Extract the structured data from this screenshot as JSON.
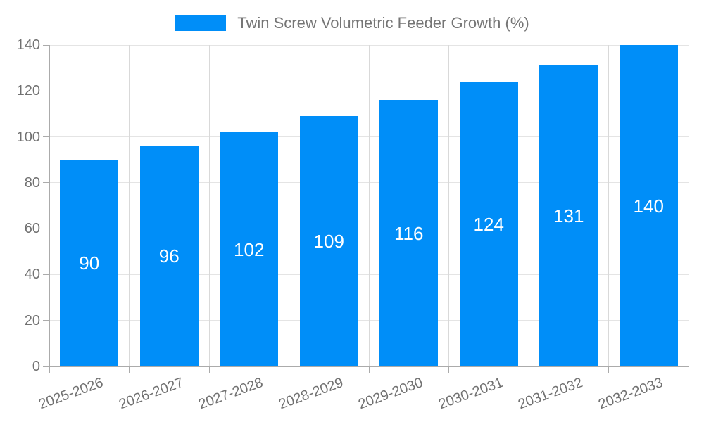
{
  "chart_data": {
    "type": "bar",
    "title": "",
    "legend": "Twin Screw Volumetric Feeder Growth (%)",
    "legend_position": "top-center",
    "categories": [
      "2025-2026",
      "2026-2027",
      "2027-2028",
      "2028-2029",
      "2029-2030",
      "2030-2031",
      "2031-2032",
      "2032-2033"
    ],
    "values": [
      90,
      96,
      102,
      109,
      116,
      124,
      131,
      140
    ],
    "bar_value_labels": [
      "90",
      "96",
      "102",
      "109",
      "116",
      "124",
      "131",
      "140"
    ],
    "xlabel": "",
    "ylabel": "",
    "ylim": [
      0,
      140
    ],
    "yticks": [
      0,
      20,
      40,
      60,
      80,
      100,
      120,
      140
    ],
    "grid": true,
    "colors": {
      "bar": "#008EF8",
      "bar_label_text": "#FFFFFF",
      "axis_line": "#ABABAB",
      "grid_line_horizontal": "#E4E4E4",
      "grid_line_vertical": "#D9D9D9",
      "tick_text": "#717171",
      "legend_text": "#757575"
    }
  }
}
